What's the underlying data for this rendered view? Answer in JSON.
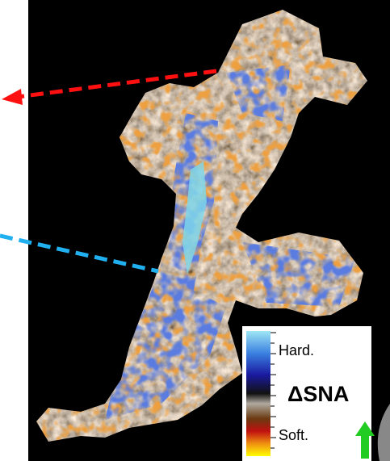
{
  "legend": {
    "top_label": "Hard.",
    "title": "ΔSNA",
    "bottom_label": "Soft."
  }
}
